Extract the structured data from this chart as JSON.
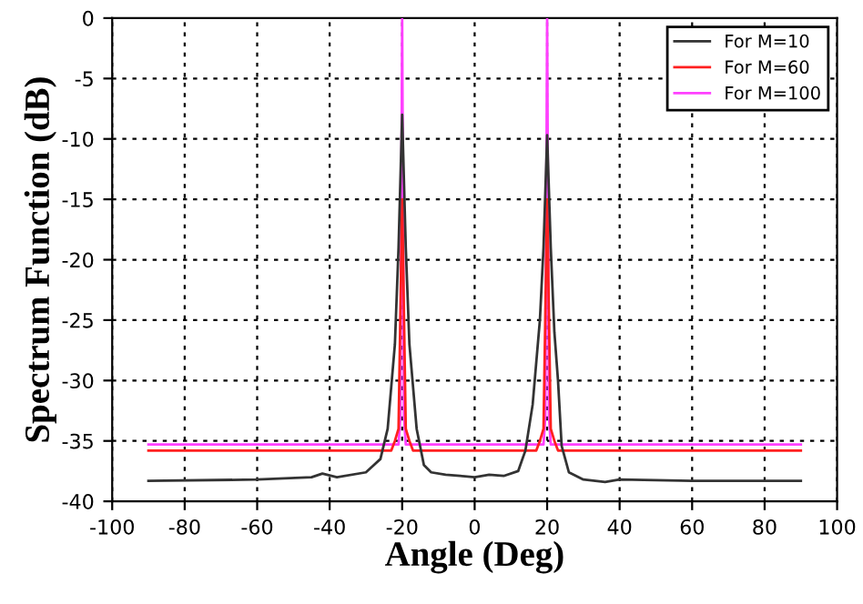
{
  "chart_data": {
    "type": "line",
    "xlabel": "Angle (Deg)",
    "ylabel": "Spectrum Function (dB)",
    "xlim": [
      -100,
      100
    ],
    "xticks": [
      -100,
      -80,
      -60,
      -40,
      -20,
      0,
      20,
      40,
      60,
      80,
      100
    ],
    "ylim": [
      -40,
      0
    ],
    "yticks": [
      -40,
      -35,
      -30,
      -25,
      -20,
      -15,
      -10,
      -5,
      0
    ],
    "grid": true,
    "legend": "top right",
    "line_style": "solid",
    "marker": "none",
    "series": [
      {
        "name": "For M=10",
        "color": "#333333",
        "x": [
          -90,
          -60,
          -45,
          -42,
          -38,
          -30,
          -26,
          -24,
          -22,
          -21,
          -20,
          -19,
          -18,
          -16,
          -14,
          -12,
          -8,
          -4,
          0,
          4,
          8,
          12,
          14,
          16,
          18,
          19,
          20,
          21,
          22,
          23,
          24,
          26,
          30,
          36,
          40,
          60,
          90
        ],
        "values": [
          -38.3,
          -38.2,
          -38.0,
          -37.7,
          -38.0,
          -37.6,
          -36.5,
          -34,
          -27,
          -19,
          -8,
          -19,
          -27,
          -34,
          -37,
          -37.6,
          -37.8,
          -37.9,
          -38.0,
          -37.8,
          -37.9,
          -37.5,
          -35.8,
          -32,
          -25,
          -19,
          -9.7,
          -19,
          -26,
          -30,
          -35.4,
          -37.6,
          -38.2,
          -38.4,
          -38.2,
          -38.3,
          -38.3
        ]
      },
      {
        "name": "For M=60",
        "color": "#ff2020",
        "x": [
          -90,
          -23,
          -22,
          -21,
          -20,
          -19,
          -18,
          -17,
          17,
          18,
          19,
          20,
          21,
          22,
          23,
          90
        ],
        "values": [
          -35.8,
          -35.8,
          -35,
          -34,
          -15,
          -34,
          -35,
          -35.8,
          -35.8,
          -35,
          -34,
          -15,
          -34,
          -35,
          -35.8,
          -35.8
        ]
      },
      {
        "name": "For M=100",
        "color": "#ff40ff",
        "x": [
          -90,
          -21,
          -20.5,
          -20,
          -19.5,
          -19,
          19,
          19.5,
          20,
          20.5,
          21,
          90
        ],
        "values": [
          -35.3,
          -35.3,
          -33,
          0,
          -33,
          -35.3,
          -35.3,
          -33,
          0,
          -33,
          -35.3,
          -35.3
        ]
      }
    ]
  }
}
